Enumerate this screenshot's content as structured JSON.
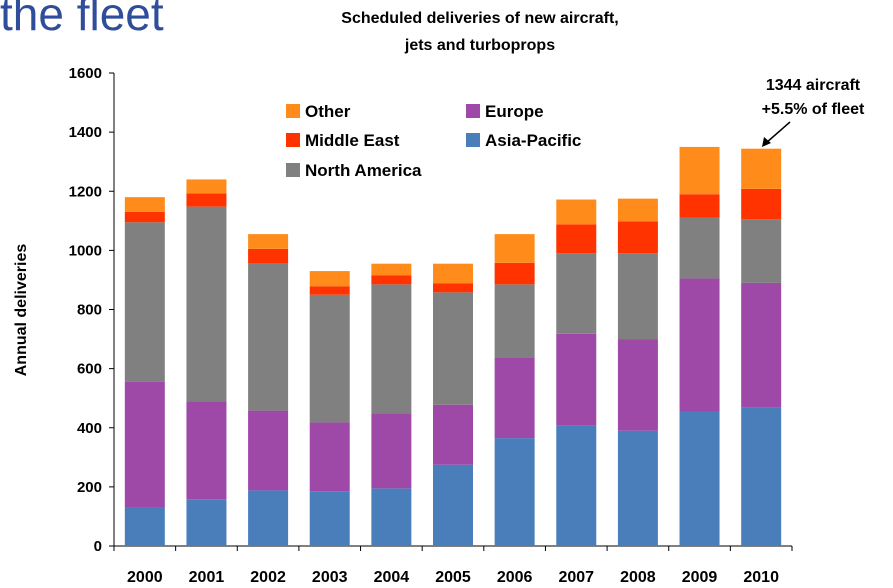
{
  "heading": "the fleet",
  "chart_data": {
    "type": "stacked-bar",
    "title": [
      "Scheduled deliveries of new aircraft,",
      "jets and turboprops"
    ],
    "y_label": "Annual deliveries",
    "categories": [
      "2000",
      "2001",
      "2002",
      "2003",
      "2004",
      "2005",
      "2006",
      "2007",
      "2008",
      "2009",
      "2010"
    ],
    "series": [
      {
        "name": "Asia-Pacific",
        "color": "#4a7ebb",
        "values": [
          130,
          158,
          188,
          185,
          195,
          275,
          365,
          408,
          390,
          455,
          468
        ]
      },
      {
        "name": "Europe",
        "color": "#9e48a8",
        "values": [
          425,
          332,
          270,
          233,
          253,
          203,
          273,
          310,
          310,
          450,
          422
        ]
      },
      {
        "name": "North America",
        "color": "#808080",
        "values": [
          540,
          658,
          497,
          432,
          437,
          380,
          247,
          272,
          290,
          205,
          215
        ]
      },
      {
        "name": "Middle East",
        "color": "#ff3300",
        "values": [
          35,
          45,
          50,
          28,
          30,
          30,
          73,
          98,
          108,
          80,
          103
        ]
      },
      {
        "name": "Other",
        "color": "#ff8c1a",
        "values": [
          50,
          47,
          50,
          52,
          40,
          67,
          97,
          84,
          77,
          160,
          136
        ]
      }
    ],
    "ylim": [
      0,
      1600
    ],
    "yticks": [
      0,
      200,
      400,
      600,
      800,
      1000,
      1200,
      1400,
      1600
    ],
    "grid": false,
    "annotation": [
      "1344 aircraft",
      "+5.5% of fleet"
    ]
  }
}
